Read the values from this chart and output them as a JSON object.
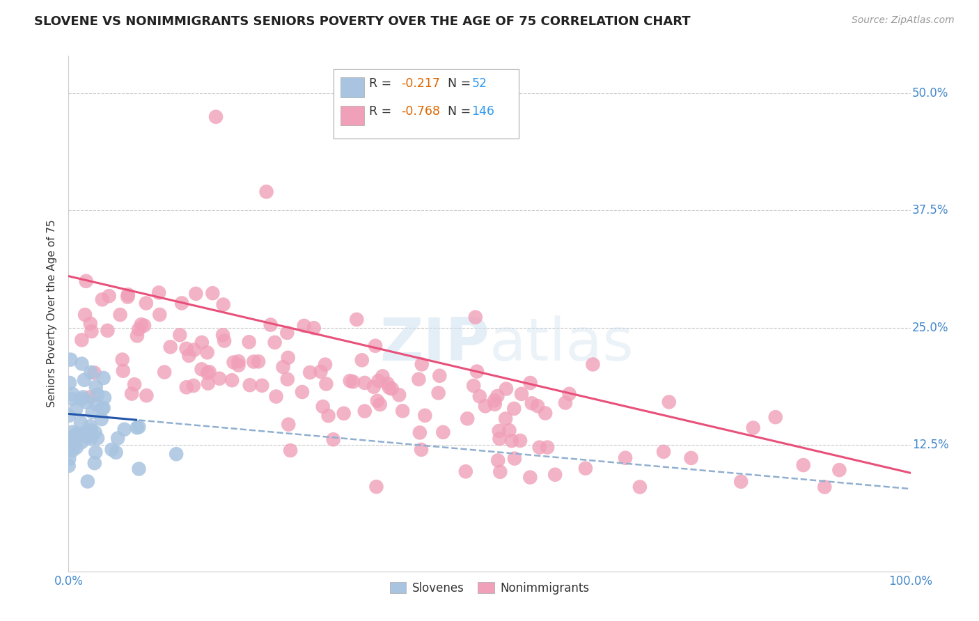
{
  "title": "SLOVENE VS NONIMMIGRANTS SENIORS POVERTY OVER THE AGE OF 75 CORRELATION CHART",
  "source": "Source: ZipAtlas.com",
  "ylabel_label": "Seniors Poverty Over the Age of 75",
  "legend_label1": "Slovenes",
  "legend_label2": "Nonimmigrants",
  "watermark_zip": "ZIP",
  "watermark_atlas": "atlas",
  "xlim": [
    0.0,
    1.0
  ],
  "ylim": [
    -0.01,
    0.54
  ],
  "blue_scatter_color": "#a8c4e0",
  "pink_scatter_color": "#f0a0b8",
  "blue_line_color": "#2255aa",
  "pink_line_color": "#e8507a",
  "blue_line_dashed_color": "#90afd0",
  "title_fontsize": 13,
  "axis_label_fontsize": 11,
  "tick_fontsize": 12,
  "source_fontsize": 10,
  "background_color": "#ffffff",
  "grid_color": "#bbbbbb",
  "R_blue": -0.217,
  "N_blue": 52,
  "R_pink": -0.768,
  "N_pink": 146,
  "yticks": [
    0.125,
    0.25,
    0.375,
    0.5
  ],
  "ytick_labels": [
    "12.5%",
    "25.0%",
    "37.5%",
    "50.0%"
  ],
  "xtick_labels": [
    "0.0%",
    "100.0%"
  ],
  "legend_R1": "-0.217",
  "legend_N1": "52",
  "legend_R2": "-0.768",
  "legend_N2": "146",
  "text_color": "#333333",
  "blue_num_color": "#3399ee",
  "orange_num_color": "#dd6600",
  "source_color": "#999999"
}
